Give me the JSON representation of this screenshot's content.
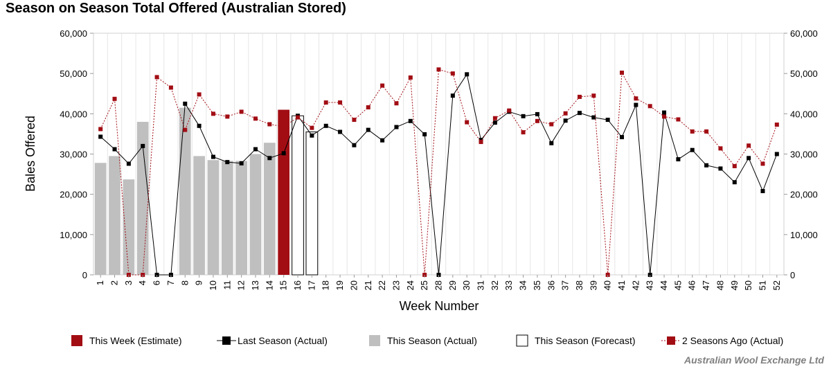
{
  "chart_data": {
    "type": "bar",
    "title": "Season on Season Total Offered (Australian Stored)",
    "xlabel": "Week Number",
    "ylabel": "Bales Offered",
    "ylim": [
      0,
      60000
    ],
    "yticks": [
      0,
      10000,
      20000,
      30000,
      40000,
      50000,
      60000
    ],
    "ytick_labels": [
      "0",
      "10,000",
      "20,000",
      "30,000",
      "40,000",
      "50,000",
      "60,000"
    ],
    "grid": "vertical",
    "legend_position": "bottom",
    "categories": [
      "1",
      "2",
      "3",
      "4",
      "6",
      "7",
      "8",
      "9",
      "10",
      "11",
      "12",
      "13",
      "14",
      "15",
      "16",
      "17",
      "18",
      "19",
      "20",
      "21",
      "22",
      "23",
      "24",
      "25",
      "28",
      "29",
      "30",
      "31",
      "32",
      "33",
      "34",
      "35",
      "36",
      "37",
      "38",
      "39",
      "40",
      "41",
      "42",
      "43",
      "44",
      "45",
      "46",
      "47",
      "48",
      "49",
      "50",
      "51",
      "52"
    ],
    "series": [
      {
        "name": "This Week (Estimate)",
        "type": "bar",
        "color": "#a20d14",
        "values": [
          null,
          null,
          null,
          null,
          null,
          null,
          null,
          null,
          null,
          null,
          null,
          null,
          null,
          41000,
          null,
          null,
          null,
          null,
          null,
          null,
          null,
          null,
          null,
          null,
          null,
          null,
          null,
          null,
          null,
          null,
          null,
          null,
          null,
          null,
          null,
          null,
          null,
          null,
          null,
          null,
          null,
          null,
          null,
          null,
          null,
          null,
          null,
          null,
          null
        ]
      },
      {
        "name": "Last Season (Actual)",
        "type": "line",
        "color": "#000000",
        "values": [
          34300,
          31200,
          27600,
          32000,
          0,
          0,
          42500,
          37000,
          29300,
          28000,
          27700,
          31200,
          29000,
          30200,
          39500,
          34600,
          37000,
          35500,
          32200,
          36000,
          33400,
          36700,
          38200,
          34900,
          0,
          44500,
          49800,
          33500,
          37800,
          40500,
          39400,
          39900,
          32700,
          38300,
          40200,
          39100,
          38500,
          34200,
          42200,
          0,
          40300,
          28700,
          31000,
          27200,
          26400,
          23000,
          29000,
          20800,
          30000
        ]
      },
      {
        "name": "This Season (Actual)",
        "type": "bar",
        "color": "#bfbfbf",
        "values": [
          27800,
          29500,
          23700,
          38000,
          null,
          null,
          41500,
          29500,
          28500,
          28300,
          28300,
          30000,
          32800,
          null,
          null,
          null,
          null,
          null,
          null,
          null,
          null,
          null,
          null,
          null,
          null,
          null,
          null,
          null,
          null,
          null,
          null,
          null,
          null,
          null,
          null,
          null,
          null,
          null,
          null,
          null,
          null,
          null,
          null,
          null,
          null,
          null,
          null,
          null,
          null
        ]
      },
      {
        "name": "This Season (Forecast)",
        "type": "bar",
        "color": "#ffffff",
        "values": [
          null,
          null,
          null,
          null,
          null,
          null,
          null,
          null,
          null,
          null,
          null,
          null,
          null,
          null,
          39500,
          35500,
          null,
          null,
          null,
          null,
          null,
          null,
          null,
          null,
          null,
          null,
          null,
          null,
          null,
          null,
          null,
          null,
          null,
          null,
          null,
          null,
          null,
          null,
          null,
          null,
          null,
          null,
          null,
          null,
          null,
          null,
          null,
          null,
          null
        ]
      },
      {
        "name": "2 Seasons Ago (Actual)",
        "type": "line",
        "color": "#a20d14",
        "values": [
          36200,
          43700,
          0,
          0,
          49100,
          46500,
          36000,
          44800,
          40000,
          39300,
          40500,
          38800,
          37400,
          36800,
          39100,
          36500,
          42800,
          42800,
          38500,
          41600,
          47000,
          42600,
          49000,
          0,
          51000,
          50000,
          37900,
          33000,
          38900,
          40800,
          35400,
          38200,
          37400,
          40100,
          44200,
          44500,
          0,
          50200,
          43800,
          41900,
          39300,
          38600,
          35600,
          35600,
          31400,
          27000,
          32100,
          27600,
          37300
        ]
      }
    ]
  },
  "footer": {
    "credit": "Australian Wool Exchange Ltd"
  }
}
